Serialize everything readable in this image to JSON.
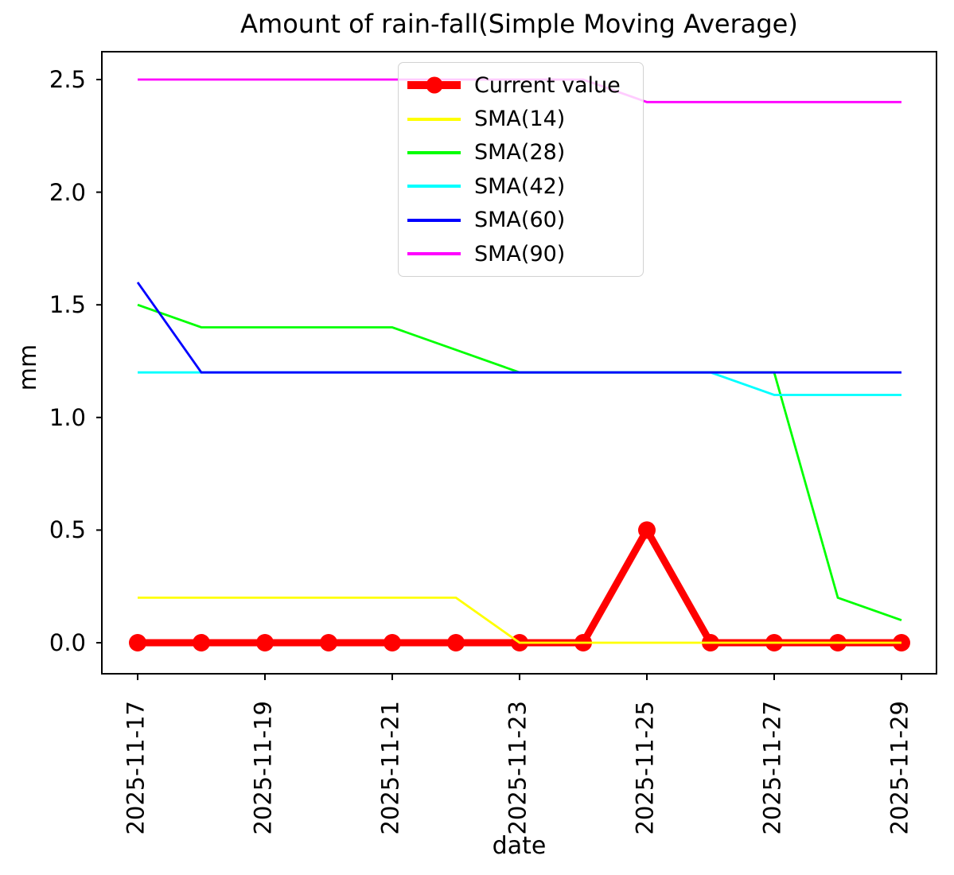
{
  "chart_data": {
    "type": "line",
    "title": "Amount of rain-fall(Simple Moving Average)",
    "xlabel": "date",
    "ylabel": "mm",
    "x": [
      "2025-11-17",
      "2025-11-18",
      "2025-11-19",
      "2025-11-20",
      "2025-11-21",
      "2025-11-22",
      "2025-11-23",
      "2025-11-24",
      "2025-11-25",
      "2025-11-26",
      "2025-11-27",
      "2025-11-28",
      "2025-11-29"
    ],
    "x_tick_indices": [
      0,
      2,
      4,
      6,
      8,
      10,
      12
    ],
    "x_tick_labels": [
      "2025-11-17",
      "2025-11-19",
      "2025-11-21",
      "2025-11-23",
      "2025-11-25",
      "2025-11-27",
      "2025-11-29"
    ],
    "y_ticks": [
      0.0,
      0.5,
      1.0,
      1.5,
      2.0,
      2.5
    ],
    "ylim": [
      -0.14,
      2.62
    ],
    "grid": false,
    "legend_position": "upper center",
    "series": [
      {
        "name": "Current value",
        "color": "#ff0000",
        "linewidth": 9,
        "marker": "circle",
        "marker_radius": 11,
        "values": [
          0,
          0,
          0,
          0,
          0,
          0,
          0,
          0,
          0.5,
          0,
          0,
          0,
          0
        ]
      },
      {
        "name": "SMA(14)",
        "color": "#ffff00",
        "linewidth": 2.8,
        "marker": null,
        "values": [
          0.2,
          0.2,
          0.2,
          0.2,
          0.2,
          0.2,
          0,
          0,
          0,
          0,
          0,
          0,
          0
        ]
      },
      {
        "name": "SMA(28)",
        "color": "#00ff00",
        "linewidth": 2.8,
        "marker": null,
        "values": [
          1.5,
          1.4,
          1.4,
          1.4,
          1.4,
          1.3,
          1.2,
          1.2,
          1.2,
          1.2,
          1.2,
          0.2,
          0.1
        ]
      },
      {
        "name": "SMA(42)",
        "color": "#00ffff",
        "linewidth": 2.8,
        "marker": null,
        "values": [
          1.2,
          1.2,
          1.2,
          1.2,
          1.2,
          1.2,
          1.2,
          1.2,
          1.2,
          1.2,
          1.1,
          1.1,
          1.1
        ]
      },
      {
        "name": "SMA(60)",
        "color": "#0000ff",
        "linewidth": 2.8,
        "marker": null,
        "values": [
          1.6,
          1.2,
          1.2,
          1.2,
          1.2,
          1.2,
          1.2,
          1.2,
          1.2,
          1.2,
          1.2,
          1.2,
          1.2
        ]
      },
      {
        "name": "SMA(90)",
        "color": "#ff00ff",
        "linewidth": 2.8,
        "marker": null,
        "values": [
          2.5,
          2.5,
          2.5,
          2.5,
          2.5,
          2.5,
          2.5,
          2.5,
          2.4,
          2.4,
          2.4,
          2.4,
          2.4
        ]
      }
    ]
  }
}
